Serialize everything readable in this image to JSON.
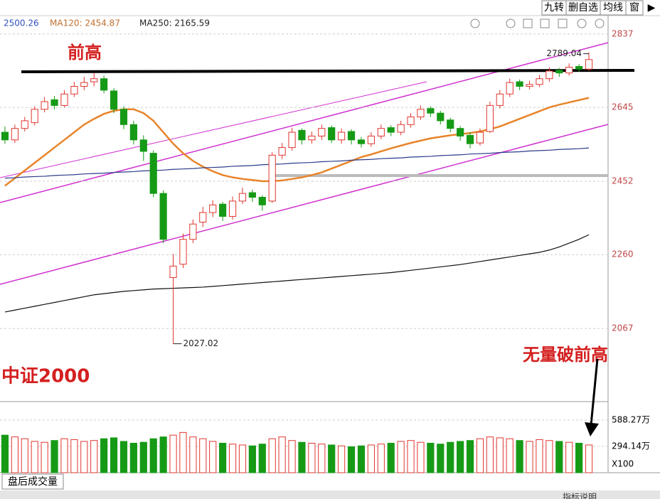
{
  "toolbar": {
    "buttons": [
      "九转",
      "删自选",
      "均线",
      "窗"
    ]
  },
  "header": {
    "values": [
      "2500.26",
      "MA120: 2454.87",
      "MA250: 2165.59"
    ]
  },
  "chart_data": {
    "type": "candlestick",
    "open": [
      2580,
      2560,
      2590,
      2605,
      2640,
      2665,
      2650,
      2680,
      2700,
      2712,
      2720,
      2688,
      2640,
      2600,
      2560,
      2525,
      2420,
      2200,
      2235,
      2300,
      2345,
      2370,
      2392,
      2360,
      2400,
      2422,
      2410,
      2400,
      2520,
      2540,
      2585,
      2560,
      2570,
      2592,
      2560,
      2582,
      2560,
      2550,
      2570,
      2592,
      2580,
      2600,
      2620,
      2642,
      2630,
      2612,
      2590,
      2572,
      2552,
      2582,
      2650,
      2680,
      2712,
      2700,
      2705,
      2720,
      2742,
      2735,
      2752,
      2745
    ],
    "high": [
      2595,
      2600,
      2620,
      2648,
      2672,
      2675,
      2690,
      2712,
      2725,
      2735,
      2728,
      2695,
      2648,
      2610,
      2572,
      2532,
      2428,
      2262,
      2315,
      2352,
      2385,
      2402,
      2398,
      2412,
      2435,
      2430,
      2415,
      2528,
      2552,
      2592,
      2590,
      2582,
      2600,
      2598,
      2590,
      2588,
      2568,
      2580,
      2600,
      2598,
      2610,
      2630,
      2650,
      2648,
      2636,
      2618,
      2596,
      2580,
      2590,
      2660,
      2690,
      2720,
      2718,
      2715,
      2730,
      2750,
      2748,
      2760,
      2758,
      2789.04
    ],
    "low": [
      2550,
      2552,
      2582,
      2598,
      2632,
      2640,
      2645,
      2672,
      2690,
      2700,
      2682,
      2630,
      2588,
      2548,
      2505,
      2410,
      2290,
      2027.02,
      2225,
      2290,
      2332,
      2358,
      2348,
      2352,
      2392,
      2398,
      2375,
      2395,
      2510,
      2532,
      2548,
      2550,
      2560,
      2552,
      2550,
      2548,
      2540,
      2542,
      2562,
      2570,
      2572,
      2592,
      2612,
      2620,
      2600,
      2580,
      2558,
      2538,
      2545,
      2578,
      2642,
      2672,
      2690,
      2692,
      2698,
      2712,
      2725,
      2728,
      2738,
      2740
    ],
    "close": [
      2560,
      2590,
      2610,
      2640,
      2660,
      2650,
      2680,
      2700,
      2710,
      2720,
      2690,
      2640,
      2600,
      2560,
      2530,
      2420,
      2300,
      2230,
      2300,
      2340,
      2370,
      2390,
      2360,
      2400,
      2420,
      2410,
      2390,
      2520,
      2540,
      2580,
      2560,
      2570,
      2590,
      2560,
      2580,
      2560,
      2550,
      2570,
      2590,
      2580,
      2600,
      2620,
      2640,
      2630,
      2610,
      2590,
      2570,
      2550,
      2580,
      2650,
      2680,
      2710,
      2700,
      2705,
      2720,
      2740,
      2735,
      2750,
      2745,
      2770
    ],
    "volume": [
      420,
      400,
      380,
      350,
      340,
      360,
      380,
      370,
      350,
      360,
      380,
      390,
      350,
      330,
      340,
      380,
      400,
      420,
      450,
      400,
      380,
      350,
      330,
      320,
      310,
      300,
      320,
      380,
      400,
      360,
      340,
      330,
      320,
      310,
      300,
      290,
      300,
      310,
      320,
      330,
      350,
      360,
      340,
      330,
      320,
      340,
      350,
      360,
      380,
      400,
      390,
      380,
      360,
      350,
      370,
      360,
      350,
      340,
      330,
      310
    ],
    "up_color": "#e0362f",
    "down_color": "#169a16",
    "series": [
      {
        "color": "#e8842a",
        "values": [
          2440,
          2460,
          2480,
          2500,
          2520,
          2540,
          2560,
          2580,
          2600,
          2615,
          2628,
          2636,
          2640,
          2640,
          2630,
          2610,
          2580,
          2550,
          2525,
          2505,
          2490,
          2478,
          2468,
          2462,
          2458,
          2455,
          2452,
          2452,
          2454,
          2458,
          2462,
          2468,
          2475,
          2485,
          2495,
          2505,
          2515,
          2522,
          2530,
          2538,
          2545,
          2552,
          2558,
          2564,
          2568,
          2572,
          2575,
          2578,
          2582,
          2588,
          2595,
          2605,
          2615,
          2625,
          2635,
          2645,
          2652,
          2658,
          2664,
          2670
        ]
      },
      {
        "color": "#2a3a8a",
        "values": [
          2460,
          2461,
          2463,
          2464,
          2465,
          2467,
          2468,
          2469,
          2471,
          2472,
          2473,
          2475,
          2476,
          2477,
          2479,
          2480,
          2481,
          2483,
          2484,
          2485,
          2487,
          2488,
          2489,
          2491,
          2492,
          2493,
          2495,
          2496,
          2497,
          2499,
          2500,
          2501,
          2503,
          2504,
          2505,
          2507,
          2508,
          2509,
          2511,
          2512,
          2513,
          2515,
          2516,
          2517,
          2519,
          2520,
          2521,
          2523,
          2524,
          2525,
          2527,
          2528,
          2529,
          2531,
          2532,
          2533,
          2535,
          2536,
          2537,
          2539
        ]
      },
      {
        "color": "#111111",
        "values": [
          2110,
          2115,
          2120,
          2125,
          2130,
          2135,
          2140,
          2145,
          2150,
          2155,
          2158,
          2161,
          2164,
          2166,
          2168,
          2170,
          2171,
          2172,
          2173,
          2174,
          2175,
          2177,
          2179,
          2181,
          2183,
          2185,
          2187,
          2189,
          2191,
          2193,
          2195,
          2197,
          2199,
          2201,
          2203,
          2205,
          2207,
          2209,
          2211,
          2213,
          2216,
          2219,
          2222,
          2225,
          2228,
          2231,
          2234,
          2238,
          2242,
          2246,
          2250,
          2254,
          2258,
          2262,
          2266,
          2272,
          2280,
          2290,
          2300,
          2312
        ]
      }
    ],
    "ylim": [
      1885,
      2870
    ],
    "yticks": [
      2837,
      2645,
      2452,
      2260,
      2067
    ],
    "grid": true,
    "vlim": [
      0,
      755
    ],
    "vticks": [
      {
        "value": 588.27,
        "label": "588.27万"
      },
      {
        "value": 294.14,
        "label": "294.14万"
      }
    ],
    "annotations": {
      "high_label": "2789.04",
      "low_label": "2027.02",
      "prev_high": "前高",
      "index_name": "中证2000",
      "note": "无量破前高",
      "scale": "X100"
    }
  },
  "footer": {
    "tab": "盘后成交量",
    "help": "指标说明"
  }
}
